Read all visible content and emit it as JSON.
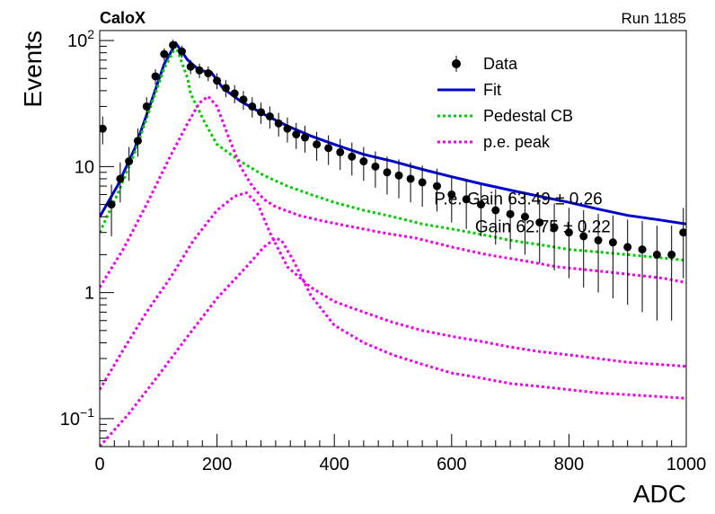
{
  "header": {
    "left": "CaloX",
    "right": "Run 1185"
  },
  "chart_data": {
    "type": "scatter",
    "xlabel": "ADC",
    "ylabel": "Events",
    "xlim": [
      0,
      1000
    ],
    "ylim": [
      0.06,
      120
    ],
    "ylog": true,
    "xticks": [
      0,
      200,
      400,
      600,
      800,
      1000
    ],
    "yticks": [
      {
        "value": 0.1,
        "base": "10",
        "exp": "−1"
      },
      {
        "value": 1,
        "base": "1",
        "exp": ""
      },
      {
        "value": 10,
        "base": "10",
        "exp": ""
      },
      {
        "value": 100,
        "base": "10",
        "exp": "2"
      }
    ],
    "legend": {
      "placement": "top-right",
      "entries": [
        {
          "label": "Data",
          "color": "#000000",
          "style": "marker"
        },
        {
          "label": "Fit",
          "color": "#0000cc",
          "style": "solid"
        },
        {
          "label": "Pedestal CB",
          "color": "#00cc00",
          "style": "dotted"
        },
        {
          "label": "p.e. peak",
          "color": "#ee00ee",
          "style": "dotted"
        }
      ]
    },
    "overlay_text": [
      {
        "text": "P.e. Gain 63.49 ± 0.26",
        "x": 570,
        "y": 5.0
      },
      {
        "text": "Gain 62.75 ± 0.22",
        "x": 640,
        "y": 3.0
      }
    ],
    "series": [
      {
        "name": "Data",
        "color": "#000000",
        "x": [
          5,
          20,
          35,
          50,
          65,
          80,
          95,
          110,
          125,
          140,
          155,
          170,
          185,
          200,
          215,
          230,
          245,
          260,
          275,
          290,
          305,
          320,
          335,
          350,
          370,
          390,
          410,
          430,
          450,
          470,
          490,
          510,
          530,
          550,
          575,
          600,
          625,
          650,
          675,
          700,
          725,
          750,
          775,
          800,
          825,
          850,
          875,
          900,
          925,
          950,
          975,
          995
        ],
        "y": [
          20,
          5,
          8,
          11,
          16,
          30,
          52,
          78,
          92,
          82,
          62,
          58,
          55,
          48,
          42,
          38,
          34,
          30,
          27,
          25,
          22,
          20,
          18,
          17,
          15,
          14,
          13,
          12,
          11,
          10,
          9,
          8.5,
          8,
          7.5,
          7,
          6,
          5.5,
          5,
          4.5,
          4.2,
          4,
          3.6,
          3.3,
          3,
          2.8,
          2.6,
          2.5,
          2.3,
          2.2,
          2,
          2,
          3
        ],
        "err": [
          5,
          2.2,
          2.8,
          3.3,
          4,
          5.5,
          7.2,
          8.8,
          9.6,
          9,
          7.9,
          7.6,
          7.4,
          6.9,
          6.5,
          6.2,
          5.8,
          5.5,
          5.2,
          5,
          4.7,
          4.5,
          4.2,
          4.1,
          3.9,
          3.7,
          3.6,
          3.5,
          3.3,
          3.2,
          3,
          2.9,
          2.8,
          2.7,
          2.6,
          2.4,
          2.3,
          2.2,
          2.1,
          2,
          2,
          1.9,
          1.8,
          1.7,
          1.7,
          1.6,
          1.6,
          1.5,
          1.5,
          1.4,
          1.4,
          1.7
        ]
      },
      {
        "name": "Fit",
        "color": "#0000cc",
        "x": [
          0,
          30,
          60,
          90,
          110,
          130,
          150,
          170,
          190,
          210,
          240,
          280,
          320,
          360,
          400,
          450,
          500,
          550,
          600,
          650,
          700,
          750,
          800,
          850,
          900,
          950,
          1000
        ],
        "y": [
          4,
          7,
          14,
          35,
          65,
          95,
          70,
          58,
          56,
          42,
          33,
          26,
          21,
          17.5,
          15,
          12.5,
          11,
          9.5,
          8.3,
          7.3,
          6.5,
          5.8,
          5.2,
          4.6,
          4.1,
          3.8,
          3.5
        ]
      },
      {
        "name": "Pedestal CB",
        "color": "#00cc00",
        "x": [
          0,
          30,
          60,
          90,
          110,
          130,
          150,
          155,
          180,
          200,
          240,
          280,
          320,
          360,
          400,
          450,
          500,
          550,
          600,
          650,
          700,
          750,
          800,
          850,
          900,
          950,
          1000
        ],
        "y": [
          3,
          6,
          13,
          33,
          60,
          90,
          50,
          38,
          22,
          15,
          11,
          8.5,
          7,
          6,
          5.2,
          4.5,
          4,
          3.5,
          3.2,
          2.9,
          2.6,
          2.4,
          2.2,
          2.1,
          2,
          1.9,
          1.8
        ]
      },
      {
        "name": "p.e. peak",
        "color": "#ee00ee",
        "x": [
          0,
          40,
          80,
          120,
          150,
          170,
          185,
          200,
          220,
          240,
          260,
          280,
          300,
          340,
          380,
          420,
          480,
          540,
          600,
          660,
          720,
          780,
          840,
          900,
          960,
          1000
        ],
        "y": [
          1.1,
          2.2,
          5,
          12,
          22,
          32,
          36,
          30,
          17,
          10,
          7,
          5.5,
          4.8,
          4.1,
          3.7,
          3.4,
          3,
          2.7,
          2.3,
          2,
          1.8,
          1.6,
          1.5,
          1.4,
          1.3,
          1.2
        ]
      },
      {
        "name": "p.e. peak 2",
        "color": "#ee00ee",
        "x": [
          0,
          40,
          80,
          120,
          160,
          200,
          230,
          250,
          270,
          290,
          320,
          360,
          400,
          450,
          500,
          550,
          600,
          650,
          700,
          750,
          800,
          850,
          900,
          950,
          1000
        ],
        "y": [
          0.17,
          0.35,
          0.7,
          1.3,
          2.6,
          4.5,
          5.8,
          6.2,
          5,
          3,
          1.6,
          1.1,
          0.85,
          0.7,
          0.58,
          0.5,
          0.45,
          0.41,
          0.37,
          0.34,
          0.32,
          0.3,
          0.28,
          0.27,
          0.26
        ]
      },
      {
        "name": "p.e. peak 3",
        "color": "#ee00ee",
        "x": [
          0,
          50,
          100,
          150,
          200,
          250,
          280,
          300,
          310,
          330,
          360,
          400,
          450,
          500,
          550,
          600,
          650,
          700,
          750,
          800,
          850,
          900,
          950,
          1000
        ],
        "y": [
          0.06,
          0.11,
          0.22,
          0.45,
          0.9,
          1.6,
          2.3,
          2.7,
          2.6,
          1.8,
          0.95,
          0.55,
          0.4,
          0.32,
          0.27,
          0.23,
          0.21,
          0.19,
          0.18,
          0.17,
          0.16,
          0.155,
          0.15,
          0.145
        ]
      }
    ]
  }
}
